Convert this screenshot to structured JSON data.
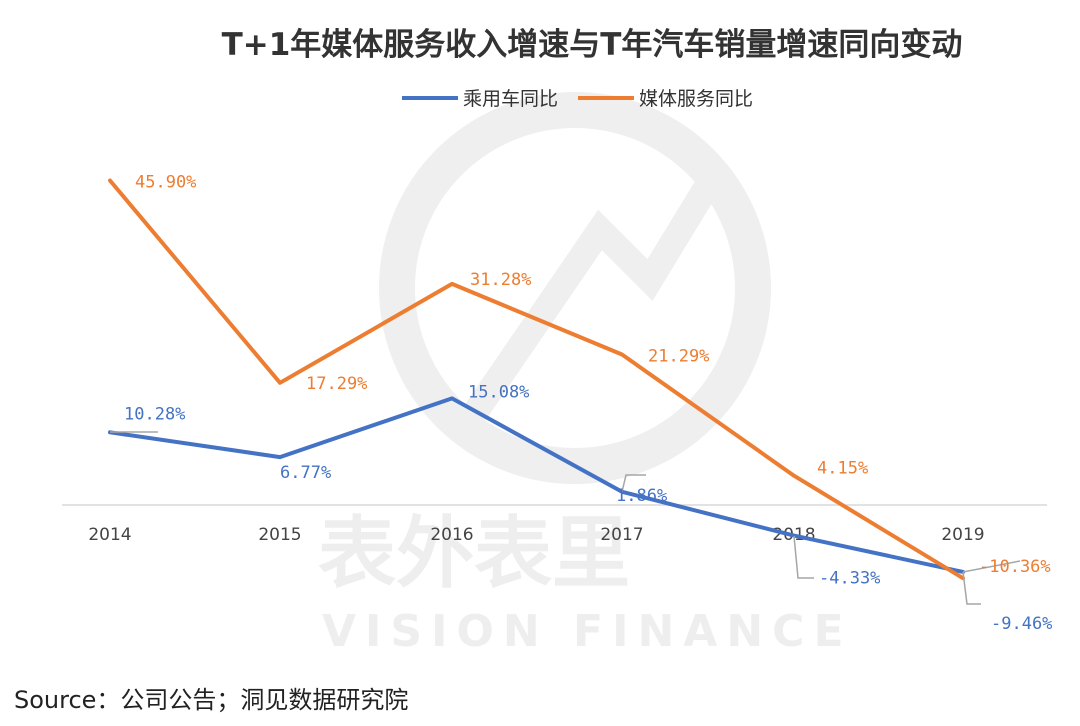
{
  "watermark": {
    "text_cn": "表外表里",
    "text_en": "VISION FINANCE"
  },
  "source_text": "Source：公司公告；洞见数据研究院",
  "chart_data": {
    "type": "line",
    "title": "T+1年媒体服务收入增速与T年汽车销量增速同向变动",
    "categories": [
      "2014",
      "2015",
      "2016",
      "2017",
      "2018",
      "2019"
    ],
    "legend_position": "top-center",
    "grid": false,
    "ylim": [
      -15,
      50
    ],
    "series": [
      {
        "name": "乘用车同比",
        "color": "#4472C4",
        "values": [
          10.28,
          6.77,
          15.08,
          1.86,
          -4.33,
          -9.46
        ],
        "labels": [
          "10.28%",
          "6.77%",
          "15.08%",
          "1.86%",
          "-4.33%",
          "-9.46%"
        ]
      },
      {
        "name": "媒体服务同比",
        "color": "#ED7D31",
        "values": [
          45.9,
          17.29,
          31.28,
          21.29,
          4.15,
          -10.36
        ],
        "labels": [
          "45.90%",
          "17.29%",
          "31.28%",
          "21.29%",
          "4.15%",
          "-10.36%"
        ]
      }
    ]
  }
}
